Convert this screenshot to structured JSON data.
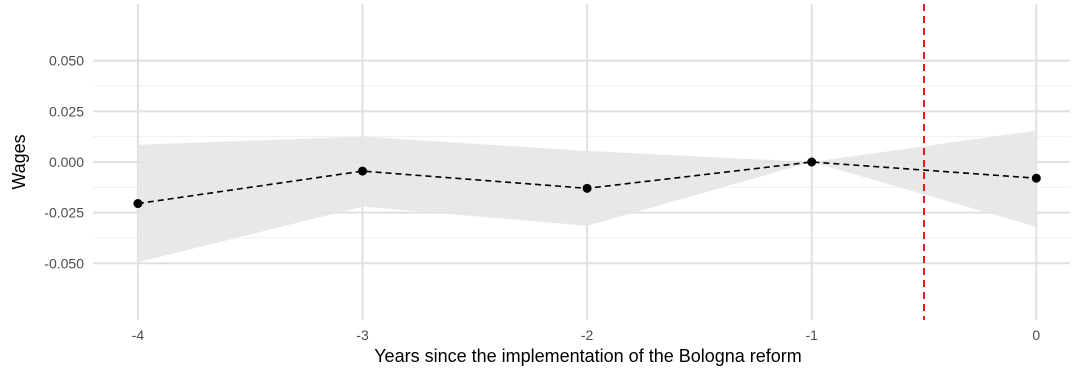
{
  "chart_data": {
    "type": "line",
    "title": "",
    "xlabel": "Years since the implementation of the Bologna reform",
    "ylabel": "Wages",
    "x_ticks": [
      -4,
      -3,
      -2,
      -1,
      0
    ],
    "x_tick_labels": [
      "-4",
      "-3",
      "-2",
      "-1",
      "0"
    ],
    "y_ticks": [
      -0.05,
      -0.025,
      0,
      0.025,
      0.05
    ],
    "y_tick_labels": [
      "-0.050",
      "-0.025",
      "0.000",
      "0.025",
      "0.050"
    ],
    "xlim": [
      -4.2,
      0.15
    ],
    "ylim": [
      -0.078,
      0.078
    ],
    "series": [
      {
        "x": [
          -4,
          -3,
          -2,
          -1,
          0
        ],
        "y": [
          -0.0205,
          -0.0045,
          -0.013,
          0.0,
          -0.008
        ],
        "ci_lower": [
          -0.0495,
          -0.022,
          -0.0315,
          0.0,
          -0.032
        ],
        "ci_upper": [
          0.0085,
          0.0125,
          0.0055,
          0.0,
          0.0155
        ],
        "line_style": "dashed",
        "color": "#000000",
        "band_color": "#e5e5e5"
      }
    ],
    "reference_line": {
      "x": -0.5,
      "color": "#e41a1c",
      "style": "dashed"
    },
    "grid": true,
    "legend": "none"
  }
}
